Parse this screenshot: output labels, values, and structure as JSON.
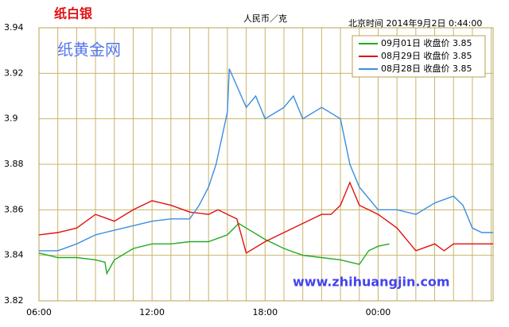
{
  "chart_data": {
    "type": "line",
    "title": "纸白银",
    "watermark": "纸黄金网",
    "unit": "人民币／克",
    "timestamp": "北京时间 2014年9月2日 0:44:00",
    "website": "www.zhihuangjin.com",
    "xlim": [
      6,
      30.1
    ],
    "xticks": [
      {
        "value": 6,
        "label": "06:00"
      },
      {
        "value": 12,
        "label": "12:00"
      },
      {
        "value": 18,
        "label": "18:00"
      },
      {
        "value": 24,
        "label": "00:00"
      }
    ],
    "x_minor_ticks": [
      7,
      8,
      9,
      10,
      11,
      13,
      14,
      15,
      16,
      17,
      19,
      20,
      21,
      22,
      23,
      25,
      26,
      27,
      28,
      29,
      30
    ],
    "ylim": [
      3.82,
      3.94
    ],
    "yticks": [
      3.82,
      3.84,
      3.86,
      3.88,
      3.9,
      3.92,
      3.94
    ],
    "grid": true,
    "legend": "top-right",
    "series": [
      {
        "name": "09月01日 收盘价 3.85",
        "color": "#22aa22",
        "x": [
          6,
          7,
          8,
          9,
          9.5,
          9.6,
          10,
          11,
          12,
          13,
          14,
          15,
          16,
          16.6,
          17,
          18,
          19,
          20,
          21,
          22,
          23,
          23.5,
          24,
          24.6
        ],
        "values": [
          3.841,
          3.839,
          3.839,
          3.838,
          3.837,
          3.832,
          3.838,
          3.843,
          3.845,
          3.845,
          3.846,
          3.846,
          3.849,
          3.854,
          3.852,
          3.847,
          3.843,
          3.84,
          3.839,
          3.838,
          3.836,
          3.842,
          3.844,
          3.845
        ]
      },
      {
        "name": "08月29日 收盘价 3.85",
        "color": "#e01010",
        "x": [
          6,
          7,
          8,
          9,
          10,
          11,
          12,
          13,
          14,
          15,
          15.5,
          16,
          16.5,
          17,
          18,
          19,
          20,
          21,
          21.5,
          22,
          22.5,
          23,
          24,
          25,
          26,
          27,
          27.5,
          28,
          30.1
        ],
        "values": [
          3.849,
          3.85,
          3.852,
          3.858,
          3.855,
          3.86,
          3.864,
          3.862,
          3.859,
          3.858,
          3.86,
          3.858,
          3.856,
          3.841,
          3.846,
          3.85,
          3.854,
          3.858,
          3.858,
          3.862,
          3.872,
          3.862,
          3.858,
          3.852,
          3.842,
          3.845,
          3.842,
          3.845,
          3.845
        ]
      },
      {
        "name": "08月28日 收盘价 3.85",
        "color": "#3a8ee0",
        "x": [
          6,
          7,
          8,
          9,
          10,
          11,
          12,
          13,
          14,
          14.5,
          15,
          15.4,
          16,
          16.1,
          17,
          17.5,
          18,
          19,
          19.5,
          20,
          21,
          22,
          22.5,
          23,
          24,
          25,
          26,
          27,
          28,
          28.5,
          29,
          29.5,
          30.1
        ],
        "values": [
          3.842,
          3.842,
          3.845,
          3.849,
          3.851,
          3.853,
          3.855,
          3.856,
          3.856,
          3.862,
          3.87,
          3.88,
          3.903,
          3.922,
          3.905,
          3.91,
          3.9,
          3.905,
          3.91,
          3.9,
          3.905,
          3.9,
          3.88,
          3.87,
          3.86,
          3.86,
          3.858,
          3.863,
          3.866,
          3.862,
          3.852,
          3.85,
          3.85
        ]
      }
    ]
  }
}
